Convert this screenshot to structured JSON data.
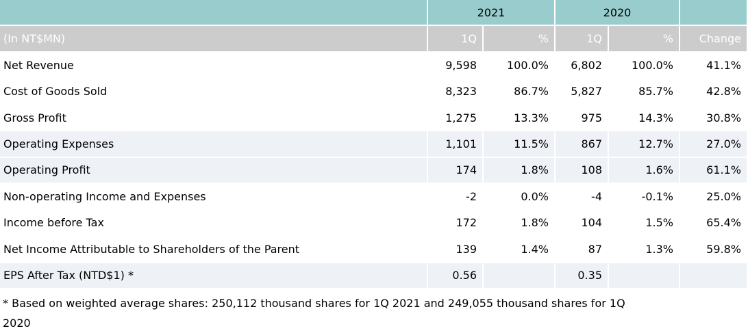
{
  "colors": {
    "header_teal": "#99cccc",
    "header_gray": "#cccccc",
    "row_stripe_blue": "#eef2f7",
    "cell_border_white": "#ffffff",
    "body_text": "#000000",
    "header_text": "#ffffff"
  },
  "table": {
    "year_groups": [
      {
        "label": "2021"
      },
      {
        "label": "2020"
      }
    ],
    "unit_label": "(In NT$MN)",
    "sub_columns": [
      "1Q",
      "%",
      "1Q",
      "%",
      "Change"
    ],
    "rows": [
      {
        "label": "Net Revenue",
        "values": [
          "9,598",
          "100.0%",
          "6,802",
          "100.0%",
          "41.1%"
        ],
        "shaded": false
      },
      {
        "label": "Cost of Goods Sold",
        "values": [
          "8,323",
          "86.7%",
          "5,827",
          "85.7%",
          "42.8%"
        ],
        "shaded": false
      },
      {
        "label": "Gross Profit",
        "values": [
          "1,275",
          "13.3%",
          "975",
          "14.3%",
          "30.8%"
        ],
        "shaded": false
      },
      {
        "label": "Operating Expenses",
        "values": [
          "1,101",
          "11.5%",
          "867",
          "12.7%",
          "27.0%"
        ],
        "shaded": true
      },
      {
        "label": "Operating Profit",
        "values": [
          "174",
          "1.8%",
          "108",
          "1.6%",
          "61.1%"
        ],
        "shaded": true
      },
      {
        "label": "Non-operating Income and Expenses",
        "values": [
          "-2",
          "0.0%",
          "-4",
          "-0.1%",
          "25.0%"
        ],
        "shaded": false
      },
      {
        "label": "Income before Tax",
        "values": [
          "172",
          "1.8%",
          "104",
          "1.5%",
          "65.4%"
        ],
        "shaded": false
      },
      {
        "label": "Net Income Attributable to Shareholders of the Parent",
        "values": [
          "139",
          "1.4%",
          "87",
          "1.3%",
          "59.8%"
        ],
        "shaded": false
      },
      {
        "label": "EPS After Tax (NTD$1) *",
        "values": [
          "0.56",
          "",
          "0.35",
          "",
          ""
        ],
        "shaded": true
      }
    ]
  },
  "footnote": {
    "lines": [
      "* Based on weighted average shares: 250,112 thousand shares for 1Q 2021 and 249,055 thousand shares for 1Q",
      "2020"
    ]
  }
}
